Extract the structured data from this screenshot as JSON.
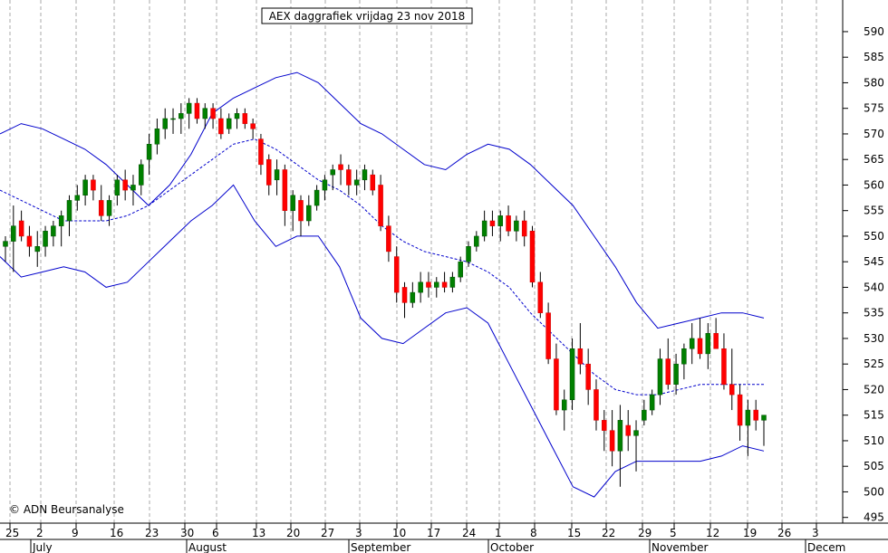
{
  "chart_data": {
    "type": "candlestick",
    "title": "AEX daggrafiek vrijdag 23 nov 2018",
    "watermark": "© ADN Beursanalyse",
    "ylim": [
      488,
      592
    ],
    "y_ticks": [
      495,
      500,
      505,
      510,
      515,
      520,
      525,
      530,
      535,
      540,
      545,
      550,
      555,
      560,
      565,
      570,
      575,
      580,
      585,
      590
    ],
    "x_day_ticks": [
      "25",
      "2",
      "9",
      "16",
      "23",
      "30",
      "6",
      "13",
      "20",
      "27",
      "3",
      "10",
      "17",
      "24",
      "1",
      "8",
      "15",
      "22",
      "29",
      "5",
      "12",
      "19",
      "26",
      "3"
    ],
    "x_month_labels": [
      "July",
      "August",
      "September",
      "October",
      "November",
      "Decem"
    ],
    "grid": true,
    "colors": {
      "up_body": "#008000",
      "down_body": "#ff0000",
      "band": "#0000cc",
      "grid": "#aaaaaa"
    },
    "candles": [
      [
        548,
        550,
        545,
        549
      ],
      [
        549,
        556,
        543,
        552
      ],
      [
        553,
        555,
        549,
        550
      ],
      [
        550,
        552,
        546,
        548
      ],
      [
        547,
        551,
        544,
        548
      ],
      [
        548,
        552,
        546,
        551
      ],
      [
        550,
        553,
        548,
        552
      ],
      [
        552,
        555,
        548,
        554
      ],
      [
        553,
        558,
        550,
        557
      ],
      [
        557,
        560,
        555,
        558
      ],
      [
        558,
        562,
        556,
        561
      ],
      [
        561,
        562,
        557,
        559
      ],
      [
        557,
        560,
        553,
        554
      ],
      [
        554,
        558,
        552,
        557
      ],
      [
        558,
        562,
        556,
        561
      ],
      [
        561,
        563,
        557,
        559
      ],
      [
        559,
        562,
        556,
        560
      ],
      [
        560,
        565,
        558,
        564
      ],
      [
        565,
        570,
        562,
        568
      ],
      [
        568,
        573,
        566,
        571
      ],
      [
        571,
        575,
        569,
        573
      ],
      [
        573,
        575,
        570,
        573
      ],
      [
        573,
        576,
        570,
        574
      ],
      [
        574,
        577,
        571,
        576
      ],
      [
        576,
        577,
        572,
        573
      ],
      [
        573,
        576,
        571,
        575
      ],
      [
        575,
        576,
        571,
        573
      ],
      [
        573,
        575,
        569,
        570
      ],
      [
        571,
        574,
        570,
        573
      ],
      [
        573,
        575,
        571,
        574
      ],
      [
        574,
        575,
        571,
        572
      ],
      [
        572,
        573,
        569,
        571
      ],
      [
        569,
        570,
        562,
        564
      ],
      [
        565,
        566,
        558,
        560
      ],
      [
        561,
        565,
        558,
        563
      ],
      [
        563,
        564,
        552,
        555
      ],
      [
        555,
        559,
        551,
        558
      ],
      [
        557,
        558,
        550,
        553
      ],
      [
        553,
        558,
        552,
        556
      ],
      [
        556,
        560,
        555,
        559
      ],
      [
        559,
        562,
        557,
        561
      ],
      [
        562,
        564,
        559,
        563
      ],
      [
        564,
        566,
        560,
        563
      ],
      [
        563,
        564,
        558,
        560
      ],
      [
        560,
        563,
        558,
        561
      ],
      [
        561,
        564,
        559,
        563
      ],
      [
        562,
        563,
        558,
        559
      ],
      [
        560,
        562,
        551,
        552
      ],
      [
        552,
        554,
        545,
        547
      ],
      [
        546,
        548,
        537,
        539
      ],
      [
        540,
        541,
        534,
        537
      ],
      [
        537,
        541,
        536,
        539
      ],
      [
        539,
        543,
        537,
        541
      ],
      [
        541,
        543,
        538,
        540
      ],
      [
        540,
        542,
        538,
        541
      ],
      [
        541,
        543,
        539,
        540
      ],
      [
        540,
        543,
        539,
        542
      ],
      [
        542,
        546,
        541,
        545
      ],
      [
        545,
        549,
        544,
        548
      ],
      [
        548,
        551,
        547,
        550
      ],
      [
        550,
        555,
        549,
        553
      ],
      [
        553,
        555,
        550,
        552
      ],
      [
        552,
        555,
        549,
        554
      ],
      [
        554,
        556,
        550,
        551
      ],
      [
        551,
        554,
        549,
        553
      ],
      [
        553,
        555,
        548,
        550
      ],
      [
        551,
        552,
        540,
        541
      ],
      [
        541,
        543,
        534,
        535
      ],
      [
        535,
        537,
        525,
        526
      ],
      [
        526,
        529,
        515,
        516
      ],
      [
        516,
        520,
        512,
        518
      ],
      [
        518,
        530,
        516,
        528
      ],
      [
        528,
        533,
        523,
        525
      ],
      [
        525,
        528,
        517,
        520
      ],
      [
        520,
        522,
        512,
        514
      ],
      [
        514,
        516,
        508,
        512
      ],
      [
        512,
        516,
        505,
        508
      ],
      [
        508,
        517,
        501,
        514
      ],
      [
        513,
        516,
        508,
        511
      ],
      [
        511,
        514,
        504,
        512
      ],
      [
        514,
        518,
        513,
        516
      ],
      [
        516,
        520,
        515,
        519
      ],
      [
        519,
        528,
        517,
        526
      ],
      [
        526,
        530,
        520,
        521
      ],
      [
        521,
        527,
        519,
        525
      ],
      [
        525,
        529,
        522,
        528
      ],
      [
        528,
        533,
        525,
        530
      ],
      [
        530,
        534,
        526,
        527
      ],
      [
        527,
        533,
        524,
        531
      ],
      [
        531,
        534,
        528,
        528
      ],
      [
        528,
        531,
        520,
        521
      ],
      [
        521,
        528,
        516,
        519
      ],
      [
        519,
        521,
        510,
        513
      ],
      [
        513,
        518,
        507,
        516
      ],
      [
        516,
        518,
        512,
        514
      ],
      [
        514,
        515,
        509,
        515
      ]
    ],
    "upper_band": [
      570,
      572,
      571,
      569,
      567,
      564,
      560,
      556,
      560,
      566,
      574,
      577,
      579,
      581,
      582,
      580,
      576,
      572,
      570,
      567,
      564,
      563,
      566,
      568,
      567,
      564,
      560,
      556,
      550,
      544,
      537,
      532,
      533,
      534,
      535,
      535,
      534
    ],
    "lower_band": [
      546,
      542,
      543,
      544,
      543,
      540,
      541,
      545,
      549,
      553,
      556,
      560,
      553,
      548,
      550,
      550,
      544,
      534,
      530,
      529,
      532,
      535,
      536,
      533,
      525,
      517,
      509,
      501,
      499,
      504,
      506,
      506,
      506,
      506,
      507,
      509,
      508
    ],
    "middle_band": [
      559,
      557,
      555,
      553,
      553,
      553,
      554,
      556,
      559,
      562,
      565,
      568,
      569,
      567,
      564,
      561,
      559,
      556,
      552,
      549,
      547,
      546,
      545,
      543,
      540,
      535,
      531,
      527,
      523,
      520,
      519,
      519,
      520,
      521,
      521,
      521,
      521
    ]
  }
}
